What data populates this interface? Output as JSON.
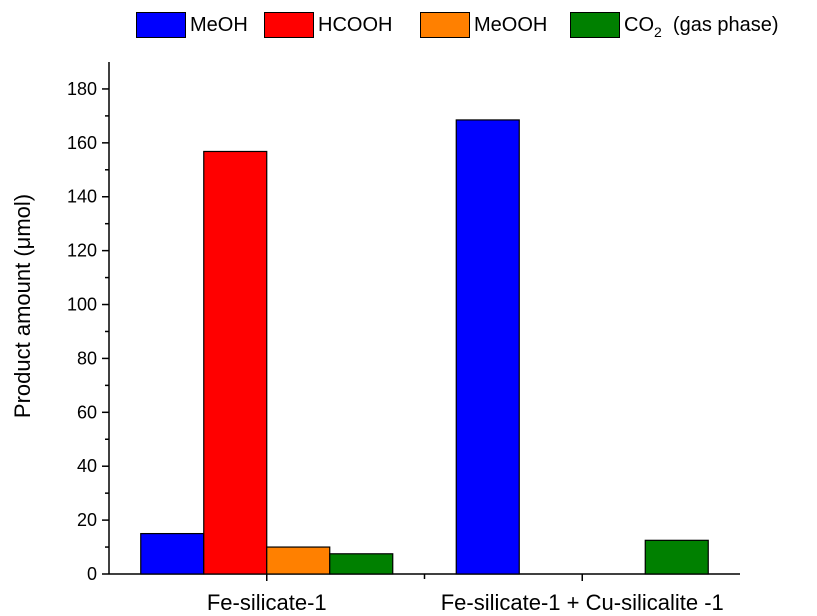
{
  "chart_data": {
    "type": "bar",
    "categories": [
      "Fe-silicate-1",
      "Fe-silicate-1 + Cu-silicalite -1"
    ],
    "series": [
      {
        "name": "MeOH",
        "color": "#0000ff",
        "values": [
          15,
          168.5
        ]
      },
      {
        "name": "HCOOH",
        "color": "#ff0000",
        "values": [
          156.8,
          0
        ]
      },
      {
        "name": "MeOOH",
        "color": "#ff8000",
        "values": [
          10,
          0
        ]
      },
      {
        "name": "CO2 (gas phase)",
        "color": "#008000",
        "values": [
          7.5,
          12.5
        ]
      }
    ],
    "title": "",
    "xlabel": "",
    "ylabel": "Product amount (μmol)",
    "ylim": [
      0,
      190
    ],
    "yticks": [
      0,
      20,
      40,
      60,
      80,
      100,
      120,
      140,
      160,
      180
    ],
    "grid": false,
    "legend_position": "top"
  },
  "legend": {
    "meoh": "MeOH",
    "hcooh": "HCOOH",
    "meooh": "MeOOH",
    "co2_main": "CO",
    "co2_sub": "2",
    "co2_suffix": "(gas phase)"
  }
}
